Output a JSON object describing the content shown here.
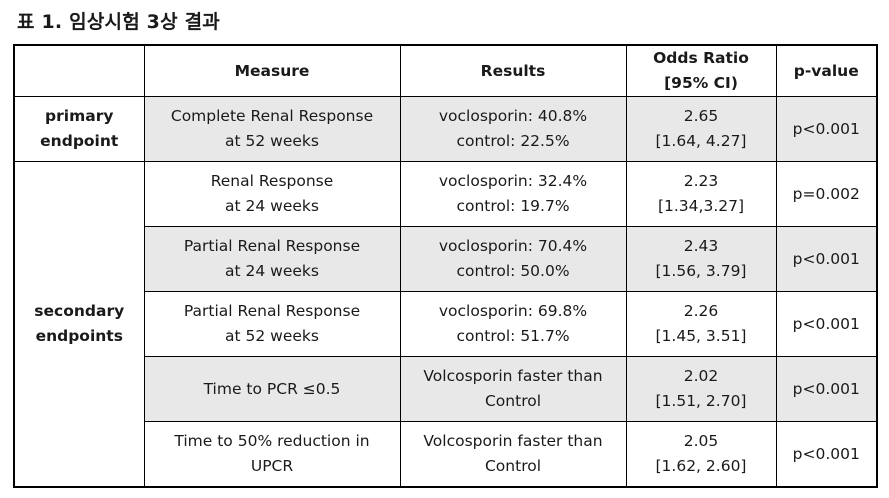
{
  "caption": "표 1. 임상시험 3상 결과",
  "headers": {
    "group": "",
    "measure": "Measure",
    "results": "Results",
    "odds_ratio": [
      "Odds Ratio",
      "[95% CI)"
    ],
    "pvalue": "p-value"
  },
  "groups": {
    "primary": [
      "primary",
      "endpoint"
    ],
    "secondary": [
      "secondary",
      "endpoints"
    ]
  },
  "rows": [
    {
      "measure": [
        "Complete Renal Response",
        "at 52 weeks"
      ],
      "results": [
        "voclosporin: 40.8%",
        "control: 22.5%"
      ],
      "odds_ratio": [
        "2.65",
        "[1.64, 4.27]"
      ],
      "pvalue": "p<0.001"
    },
    {
      "measure": [
        "Renal Response",
        "at 24 weeks"
      ],
      "results": [
        "voclosporin: 32.4%",
        "control: 19.7%"
      ],
      "odds_ratio": [
        "2.23",
        "[1.34,3.27]"
      ],
      "pvalue": "p=0.002"
    },
    {
      "measure": [
        "Partial Renal Response",
        "at 24 weeks"
      ],
      "results": [
        "voclosporin: 70.4%",
        "control: 50.0%"
      ],
      "odds_ratio": [
        "2.43",
        "[1.56, 3.79]"
      ],
      "pvalue": "p<0.001"
    },
    {
      "measure": [
        "Partial Renal Response",
        "at 52 weeks"
      ],
      "results": [
        "voclosporin: 69.8%",
        "control: 51.7%"
      ],
      "odds_ratio": [
        "2.26",
        "[1.45, 3.51]"
      ],
      "pvalue": "p<0.001"
    },
    {
      "measure": [
        "Time to PCR ≤0.5"
      ],
      "results": [
        "Volcosporin faster than",
        "Control"
      ],
      "odds_ratio": [
        "2.02",
        "[1.51, 2.70]"
      ],
      "pvalue": "p<0.001"
    },
    {
      "measure": [
        "Time to 50% reduction in",
        "UPCR"
      ],
      "results": [
        "Volcosporin faster than",
        "Control"
      ],
      "odds_ratio": [
        "2.05",
        "[1.62, 2.60]"
      ],
      "pvalue": "p<0.001"
    }
  ],
  "colors": {
    "shaded_row": "#e8e8e8",
    "border": "#000000"
  }
}
